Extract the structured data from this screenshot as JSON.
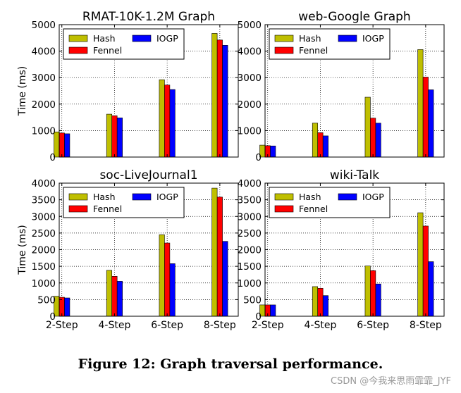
{
  "chart_data": [
    {
      "type": "bar",
      "title": "RMAT-10K-1.2M Graph",
      "ylabel": "Time (ms)",
      "xlabel": "",
      "categories": [
        "2-Step",
        "4-Step",
        "6-Step",
        "8-Step"
      ],
      "ylim": [
        0,
        5000
      ],
      "yticks": [
        0,
        1000,
        2000,
        3000,
        4000,
        5000
      ],
      "series": [
        {
          "name": "Hash",
          "values": [
            950,
            1620,
            2920,
            4670
          ]
        },
        {
          "name": "Fennel",
          "values": [
            910,
            1560,
            2720,
            4420
          ]
        },
        {
          "name": "IOGP",
          "values": [
            880,
            1480,
            2550,
            4220
          ]
        }
      ]
    },
    {
      "type": "bar",
      "title": "web-Google Graph",
      "ylabel": "",
      "xlabel": "",
      "categories": [
        "2-Step",
        "4-Step",
        "6-Step",
        "8-Step"
      ],
      "ylim": [
        0,
        5000
      ],
      "yticks": [
        0,
        1000,
        2000,
        3000,
        4000,
        5000
      ],
      "series": [
        {
          "name": "Hash",
          "values": [
            450,
            1280,
            2260,
            4060
          ]
        },
        {
          "name": "Fennel",
          "values": [
            430,
            920,
            1470,
            3020
          ]
        },
        {
          "name": "IOGP",
          "values": [
            420,
            800,
            1280,
            2540
          ]
        }
      ]
    },
    {
      "type": "bar",
      "title": "soc-LiveJournal1",
      "ylabel": "Time (ms)",
      "xlabel": "",
      "categories": [
        "2-Step",
        "4-Step",
        "6-Step",
        "8-Step"
      ],
      "ylim": [
        0,
        4000
      ],
      "yticks": [
        0,
        500,
        1000,
        1500,
        2000,
        2500,
        3000,
        3500,
        4000
      ],
      "series": [
        {
          "name": "Hash",
          "values": [
            600,
            1380,
            2450,
            3850
          ]
        },
        {
          "name": "Fennel",
          "values": [
            570,
            1200,
            2200,
            3580
          ]
        },
        {
          "name": "IOGP",
          "values": [
            550,
            1050,
            1580,
            2250
          ]
        }
      ]
    },
    {
      "type": "bar",
      "title": "wiki-Talk",
      "ylabel": "",
      "xlabel": "",
      "categories": [
        "2-Step",
        "4-Step",
        "6-Step",
        "8-Step"
      ],
      "ylim": [
        0,
        4000
      ],
      "yticks": [
        0,
        500,
        1000,
        1500,
        2000,
        2500,
        3000,
        3500,
        4000
      ],
      "series": [
        {
          "name": "Hash",
          "values": [
            340,
            890,
            1510,
            3110
          ]
        },
        {
          "name": "Fennel",
          "values": [
            340,
            840,
            1370,
            2710
          ]
        },
        {
          "name": "IOGP",
          "values": [
            340,
            620,
            970,
            1640
          ]
        }
      ]
    }
  ],
  "colors": {
    "Hash": "#bfbf00",
    "Fennel": "#ff0000",
    "IOGP": "#0000ff"
  },
  "caption": "Figure 12: Graph traversal performance.",
  "watermark": "CSDN @今我来思雨霏霏_JYF"
}
